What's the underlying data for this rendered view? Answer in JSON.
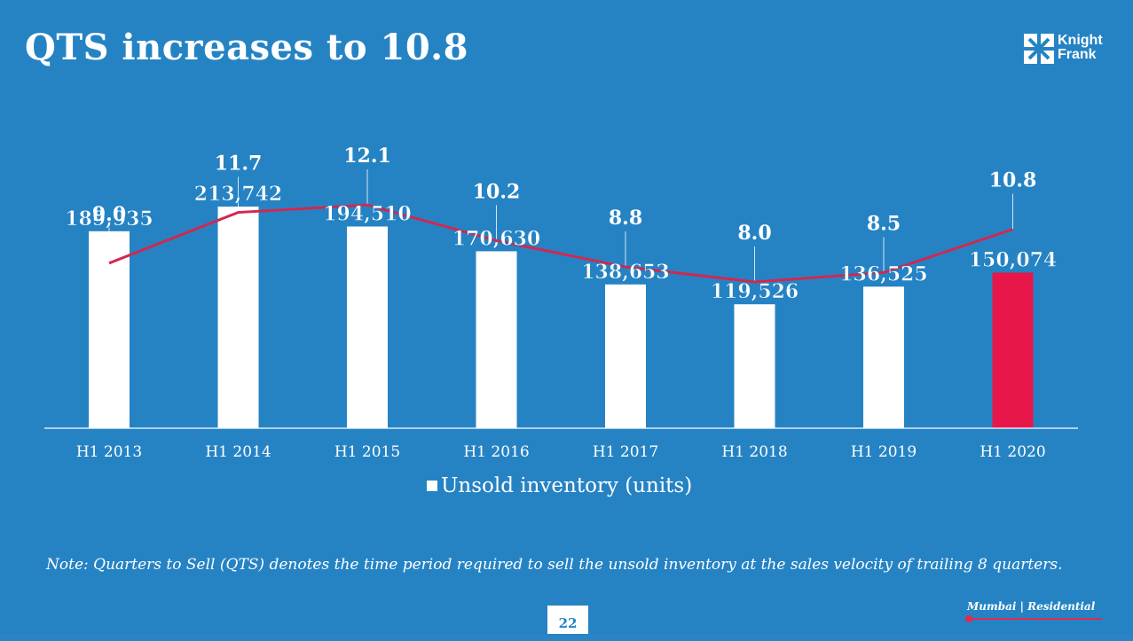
{
  "slide": {
    "title": "QTS increases to 10.8",
    "logo_line1": "Knight",
    "logo_line2": "Frank",
    "note": "Note: Quarters to Sell (QTS) denotes the time period required to sell the unsold inventory at the sales velocity of trailing 8 quarters.",
    "page_number": "22",
    "footer_tag": "Mumbai | Residential"
  },
  "colors": {
    "background": "#2583c4",
    "bar": "#ffffff",
    "highlight_bar": "#e8174a",
    "line": "#d1284e",
    "text": "#ffffff"
  },
  "chart_data": {
    "type": "bar",
    "categories": [
      "H1 2013",
      "H1 2014",
      "H1 2015",
      "H1 2016",
      "H1 2017",
      "H1 2018",
      "H1 2019",
      "H1 2020"
    ],
    "series": [
      {
        "name": "Unsold inventory (units)",
        "type": "bar",
        "values": [
          189935,
          213742,
          194510,
          170630,
          138653,
          119526,
          136525,
          150074
        ],
        "labels": [
          "189,935",
          "213,742",
          "194,510",
          "170,630",
          "138,653",
          "119,526",
          "136,525",
          "150,074"
        ],
        "highlight_index": 7
      },
      {
        "type": "line",
        "values": [
          9.0,
          11.7,
          12.1,
          10.2,
          8.8,
          8.0,
          8.5,
          10.8
        ],
        "labels": [
          "9.0",
          "11.7",
          "12.1",
          "10.2",
          "8.8",
          "8.0",
          "8.5",
          "10.8"
        ]
      }
    ],
    "legend": {
      "label": "Unsold inventory (units)",
      "position": "bottom"
    },
    "grid": false
  }
}
